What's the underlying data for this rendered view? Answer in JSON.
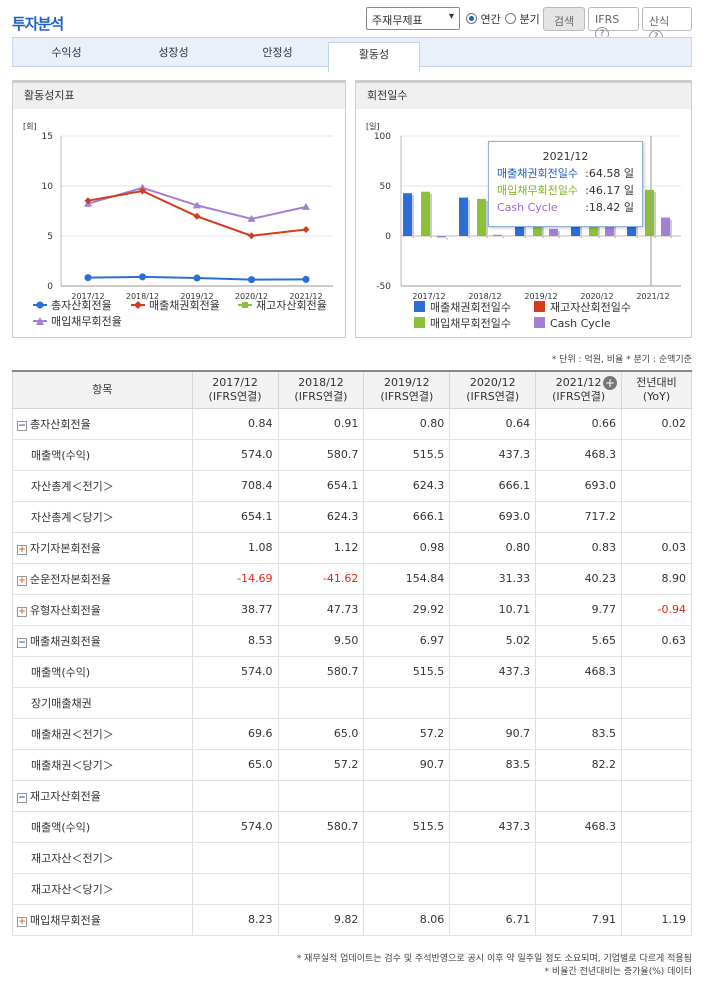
{
  "header": {
    "title": "투자분석",
    "report_select": "주재무제표",
    "period_annual": "연간",
    "period_quarter": "분기",
    "search_label": "검색",
    "ifrs_label": "IFRS",
    "formula_label": "산식",
    "help_glyph": "?"
  },
  "tabs": [
    {
      "label": "수익성",
      "active": false
    },
    {
      "label": "성장성",
      "active": false
    },
    {
      "label": "안정성",
      "active": false
    },
    {
      "label": "활동성",
      "active": true
    }
  ],
  "left_chart": {
    "panel_title": "활동성지표",
    "unit": "[회]"
  },
  "right_chart": {
    "panel_title": "회전일수",
    "unit": "[일]",
    "tooltip": {
      "title": "2021/12",
      "rows": [
        {
          "label": "매출채권회전일수",
          "value": ":64.58 일",
          "color": "#1b62c4"
        },
        {
          "label": "매입채무회전일수",
          "value": ":46.17 일",
          "color": "#7ab520"
        },
        {
          "label": "Cash Cycle",
          "value": ":18.42 일",
          "color": "#9b6ad6"
        }
      ]
    }
  },
  "chart_data": [
    {
      "type": "line",
      "title": "활동성지표",
      "ylabel": "[회]",
      "categories": [
        "2017/12",
        "2018/12",
        "2019/12",
        "2020/12",
        "2021/12"
      ],
      "ylim": [
        0,
        15
      ],
      "yticks": [
        0,
        5,
        10,
        15
      ],
      "grid": true,
      "legend_position": "bottom",
      "series": [
        {
          "name": "총자산회전율",
          "values": [
            0.84,
            0.91,
            0.8,
            0.64,
            0.66
          ],
          "color": "#2b6fd6",
          "marker": "circle"
        },
        {
          "name": "매출채권회전율",
          "values": [
            8.53,
            9.5,
            6.97,
            5.02,
            5.65
          ],
          "color": "#d63b1c",
          "marker": "diamond"
        },
        {
          "name": "재고자산회전율",
          "values": [
            null,
            null,
            null,
            null,
            null
          ],
          "color": "#8bc23a",
          "marker": "square"
        },
        {
          "name": "매입채무회전율",
          "values": [
            8.23,
            9.82,
            8.06,
            6.71,
            7.91
          ],
          "color": "#a37fd6",
          "marker": "triangle"
        }
      ]
    },
    {
      "type": "bar",
      "title": "회전일수",
      "ylabel": "[일]",
      "categories": [
        "2017/12",
        "2018/12",
        "2019/12",
        "2020/12",
        "2021/12"
      ],
      "ylim": [
        -50,
        100
      ],
      "yticks": [
        -50,
        0,
        50,
        100
      ],
      "grid": true,
      "legend_position": "bottom",
      "series": [
        {
          "name": "매출채권회전일수",
          "values": [
            42.8,
            38.4,
            52.4,
            72.7,
            64.58
          ],
          "color": "#2b6fd6"
        },
        {
          "name": "재고자산회전일수",
          "values": [
            null,
            null,
            null,
            null,
            null
          ],
          "color": "#d63b1c"
        },
        {
          "name": "매입채무회전일수",
          "values": [
            44.3,
            37.2,
            45.3,
            54.4,
            46.17
          ],
          "color": "#8bc23a"
        },
        {
          "name": "Cash Cycle",
          "values": [
            -1.5,
            1.2,
            7.1,
            18.3,
            18.42
          ],
          "color": "#a37fd6"
        }
      ]
    }
  ],
  "table": {
    "unit_note": "* 단위 : 억원, 비율   * 분기 : 순액기준",
    "header_item": "항목",
    "columns": [
      {
        "l1": "2017/12",
        "l2": "(IFRS연결)"
      },
      {
        "l1": "2018/12",
        "l2": "(IFRS연결)"
      },
      {
        "l1": "2019/12",
        "l2": "(IFRS연결)"
      },
      {
        "l1": "2020/12",
        "l2": "(IFRS연결)"
      },
      {
        "l1": "2021/12",
        "l2": "(IFRS연결)"
      },
      {
        "l1": "전년대비",
        "l2": "(YoY)"
      }
    ],
    "rows": [
      {
        "label": "총자산회전율",
        "toggle": "minus",
        "values": [
          "0.84",
          "0.91",
          "0.80",
          "0.64",
          "0.66",
          "0.02"
        ]
      },
      {
        "label": "매출액(수익)",
        "toggle": "",
        "values": [
          "574.0",
          "580.7",
          "515.5",
          "437.3",
          "468.3",
          ""
        ]
      },
      {
        "label": "자산총계＜전기＞",
        "toggle": "",
        "values": [
          "708.4",
          "654.1",
          "624.3",
          "666.1",
          "693.0",
          ""
        ]
      },
      {
        "label": "자산총계＜당기＞",
        "toggle": "",
        "values": [
          "654.1",
          "624.3",
          "666.1",
          "693.0",
          "717.2",
          ""
        ]
      },
      {
        "label": "자기자본회전율",
        "toggle": "plus",
        "values": [
          "1.08",
          "1.12",
          "0.98",
          "0.80",
          "0.83",
          "0.03"
        ]
      },
      {
        "label": "순운전자본회전율",
        "toggle": "plus",
        "values": [
          "-14.69",
          "-41.62",
          "154.84",
          "31.33",
          "40.23",
          "8.90"
        ]
      },
      {
        "label": "유형자산회전율",
        "toggle": "plus",
        "values": [
          "38.77",
          "47.73",
          "29.92",
          "10.71",
          "9.77",
          "-0.94"
        ]
      },
      {
        "label": "매출채권회전율",
        "toggle": "minus",
        "values": [
          "8.53",
          "9.50",
          "6.97",
          "5.02",
          "5.65",
          "0.63"
        ]
      },
      {
        "label": "매출액(수익)",
        "toggle": "",
        "values": [
          "574.0",
          "580.7",
          "515.5",
          "437.3",
          "468.3",
          ""
        ]
      },
      {
        "label": "장기매출채권",
        "toggle": "",
        "values": [
          "",
          "",
          "",
          "",
          "",
          ""
        ]
      },
      {
        "label": "매출채권＜전기＞",
        "toggle": "",
        "values": [
          "69.6",
          "65.0",
          "57.2",
          "90.7",
          "83.5",
          ""
        ]
      },
      {
        "label": "매출채권＜당기＞",
        "toggle": "",
        "values": [
          "65.0",
          "57.2",
          "90.7",
          "83.5",
          "82.2",
          ""
        ]
      },
      {
        "label": "재고자산회전율",
        "toggle": "minus",
        "values": [
          "",
          "",
          "",
          "",
          "",
          ""
        ]
      },
      {
        "label": "매출액(수익)",
        "toggle": "",
        "values": [
          "574.0",
          "580.7",
          "515.5",
          "437.3",
          "468.3",
          ""
        ]
      },
      {
        "label": "재고자산＜전기＞",
        "toggle": "",
        "values": [
          "",
          "",
          "",
          "",
          "",
          ""
        ]
      },
      {
        "label": "재고자산＜당기＞",
        "toggle": "",
        "values": [
          "",
          "",
          "",
          "",
          "",
          ""
        ]
      },
      {
        "label": "매입채무회전율",
        "toggle": "plus",
        "values": [
          "8.23",
          "9.82",
          "8.06",
          "6.71",
          "7.91",
          "1.19"
        ]
      }
    ]
  },
  "footnotes": [
    "* 재무실적 업데이트는 검수 및 주석반영으로 공시 이후 약 일주일 정도 소요되며, 기업별로 다르게 적용됨",
    "* 비율간 전년대비는 증가율(%) 데이터"
  ]
}
